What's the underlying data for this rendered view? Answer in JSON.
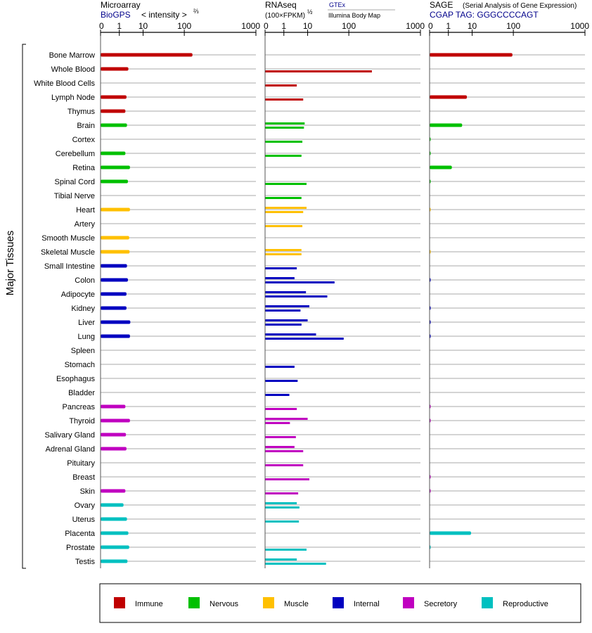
{
  "y_axis_label": "Major Tissues",
  "panels": {
    "microarray": {
      "title": "Microarray",
      "source": "BioGPS",
      "scale_label": "< intensity >",
      "scale_exp": "⅔"
    },
    "rnaseq": {
      "title": "RNAseq",
      "unit_label": "(100×FPKM)",
      "unit_exp": "½",
      "series_1": "GTEx",
      "series_2": "Illumina Body Map"
    },
    "sage": {
      "title": "SAGE",
      "subtitle": "(Serial Analysis of Gene Expression)",
      "source": "CGAP TAG: GGGCCCCAGT"
    }
  },
  "legend": [
    {
      "label": "Immune",
      "color": "#c00000"
    },
    {
      "label": "Nervous",
      "color": "#00c000"
    },
    {
      "label": "Muscle",
      "color": "#ffc000"
    },
    {
      "label": "Internal",
      "color": "#0000c0"
    },
    {
      "label": "Secretory",
      "color": "#c000c0"
    },
    {
      "label": "Reproductive",
      "color": "#00c0c0"
    }
  ],
  "chart_data": [
    {
      "type": "bar",
      "orientation": "horizontal",
      "title": "Microarray",
      "x_ticks": [
        "0",
        "1",
        "10",
        "100",
        "1000"
      ],
      "xlim": [
        0,
        1000
      ],
      "categories": [
        "Bone Marrow",
        "Whole Blood",
        "White Blood Cells",
        "Lymph Node",
        "Thymus",
        "Brain",
        "Cortex",
        "Cerebellum",
        "Retina",
        "Spinal Cord",
        "Tibial Nerve",
        "Heart",
        "Artery",
        "Smooth Muscle",
        "Skeletal Muscle",
        "Small Intestine",
        "Colon",
        "Adipocyte",
        "Kidney",
        "Liver",
        "Lung",
        "Spleen",
        "Stomach",
        "Esophagus",
        "Bladder",
        "Pancreas",
        "Thyroid",
        "Salivary Gland",
        "Adrenal Gland",
        "Pituitary",
        "Breast",
        "Skin",
        "Ovary",
        "Uterus",
        "Placenta",
        "Prostate",
        "Testis"
      ],
      "groups": [
        "Immune",
        "Immune",
        "Immune",
        "Immune",
        "Immune",
        "Nervous",
        "Nervous",
        "Nervous",
        "Nervous",
        "Nervous",
        "Nervous",
        "Muscle",
        "Muscle",
        "Muscle",
        "Muscle",
        "Internal",
        "Internal",
        "Internal",
        "Internal",
        "Internal",
        "Internal",
        "Internal",
        "Internal",
        "Internal",
        "Internal",
        "Secretory",
        "Secretory",
        "Secretory",
        "Secretory",
        "Secretory",
        "Secretory",
        "Secretory",
        "Reproductive",
        "Reproductive",
        "Reproductive",
        "Reproductive",
        "Reproductive"
      ],
      "series": [
        {
          "name": "BioGPS",
          "values": [
            130,
            2.4,
            null,
            2,
            1.8,
            2.1,
            null,
            1.8,
            2.8,
            2.3,
            null,
            2.8,
            null,
            2.6,
            2.7,
            2.1,
            2.3,
            2,
            2,
            2.9,
            2.8,
            null,
            null,
            null,
            null,
            1.8,
            2.8,
            1.9,
            2,
            null,
            null,
            1.8,
            1.5,
            2.1,
            2.4,
            2.6,
            2.2
          ]
        }
      ]
    },
    {
      "type": "bar",
      "orientation": "horizontal",
      "title": "RNAseq",
      "x_ticks": [
        "0",
        "1",
        "10",
        "100",
        "1000"
      ],
      "xlim": [
        0,
        1000
      ],
      "categories": [
        "Bone Marrow",
        "Whole Blood",
        "White Blood Cells",
        "Lymph Node",
        "Thymus",
        "Brain",
        "Cortex",
        "Cerebellum",
        "Retina",
        "Spinal Cord",
        "Tibial Nerve",
        "Heart",
        "Artery",
        "Smooth Muscle",
        "Skeletal Muscle",
        "Small Intestine",
        "Colon",
        "Adipocyte",
        "Kidney",
        "Liver",
        "Lung",
        "Spleen",
        "Stomach",
        "Esophagus",
        "Bladder",
        "Pancreas",
        "Thyroid",
        "Salivary Gland",
        "Adrenal Gland",
        "Pituitary",
        "Breast",
        "Skin",
        "Ovary",
        "Uterus",
        "Placenta",
        "Prostate",
        "Testis"
      ],
      "series": [
        {
          "name": "GTEx",
          "values": [
            null,
            null,
            null,
            null,
            null,
            7.5,
            null,
            null,
            null,
            null,
            null,
            9,
            null,
            null,
            5.5,
            null,
            2.8,
            8.5,
            11,
            10,
            16,
            null,
            null,
            null,
            null,
            null,
            10,
            null,
            2.8,
            null,
            null,
            null,
            3.5,
            null,
            null,
            null,
            3.5
          ]
        },
        {
          "name": "Illumina Body Map",
          "values": [
            null,
            210,
            3.5,
            6.5,
            null,
            7,
            6,
            5.5,
            null,
            9,
            5.5,
            6.5,
            6,
            null,
            5.5,
            3.5,
            45,
            30,
            5,
            5.5,
            75,
            null,
            2.8,
            3.8,
            1.7,
            3.5,
            1.8,
            3.2,
            6.5,
            6.5,
            11,
            4,
            4.5,
            4.3,
            null,
            9,
            28
          ]
        }
      ]
    },
    {
      "type": "bar",
      "orientation": "horizontal",
      "title": "SAGE",
      "x_ticks": [
        "0",
        "1",
        "10",
        "100",
        "1000"
      ],
      "xlim": [
        0,
        1000
      ],
      "categories": [
        "Bone Marrow",
        "Whole Blood",
        "White Blood Cells",
        "Lymph Node",
        "Thymus",
        "Brain",
        "Cortex",
        "Cerebellum",
        "Retina",
        "Spinal Cord",
        "Tibial Nerve",
        "Heart",
        "Artery",
        "Smooth Muscle",
        "Skeletal Muscle",
        "Small Intestine",
        "Colon",
        "Adipocyte",
        "Kidney",
        "Liver",
        "Lung",
        "Spleen",
        "Stomach",
        "Esophagus",
        "Bladder",
        "Pancreas",
        "Thyroid",
        "Salivary Gland",
        "Adrenal Gland",
        "Pituitary",
        "Breast",
        "Skin",
        "Ovary",
        "Uterus",
        "Placenta",
        "Prostate",
        "Testis"
      ],
      "series": [
        {
          "name": "CGAP TAG: GGGCCCCAGT",
          "values": [
            95,
            null,
            null,
            6,
            null,
            3.8,
            0.05,
            0.05,
            1.4,
            0.05,
            null,
            0.03,
            null,
            null,
            0.03,
            null,
            0.05,
            null,
            0.05,
            0.05,
            0.05,
            null,
            null,
            null,
            null,
            0.05,
            0.05,
            null,
            null,
            null,
            0.05,
            0.05,
            null,
            null,
            9,
            0.05,
            null
          ]
        }
      ]
    }
  ]
}
